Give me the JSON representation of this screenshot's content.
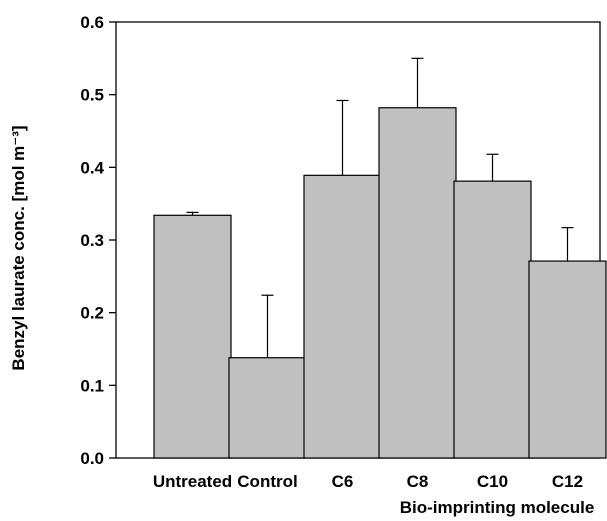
{
  "chart_data": {
    "type": "bar",
    "categories": [
      "Untreated",
      "Control",
      "C6",
      "C8",
      "C10",
      "C12"
    ],
    "values": [
      0.334,
      0.138,
      0.389,
      0.482,
      0.381,
      0.271
    ],
    "error": [
      0.004,
      0.086,
      0.103,
      0.068,
      0.037,
      0.046
    ],
    "title": "",
    "xlabel": "Bio-imprinting molecule",
    "ylabel": "Benzyl laurate conc. [mol m⁻³]",
    "ylim": [
      0,
      0.6
    ],
    "yticks": [
      0.0,
      0.1,
      0.2,
      0.3,
      0.4,
      0.5,
      0.6
    ],
    "ytick_labels": [
      "0.0",
      "0.1",
      "0.2",
      "0.3",
      "0.4",
      "0.5",
      "0.6"
    ],
    "grid": false,
    "legend": "none",
    "colors": {
      "bar_fill": "#c0c0c0",
      "bar_stroke": "#000000",
      "axis": "#000000"
    }
  }
}
